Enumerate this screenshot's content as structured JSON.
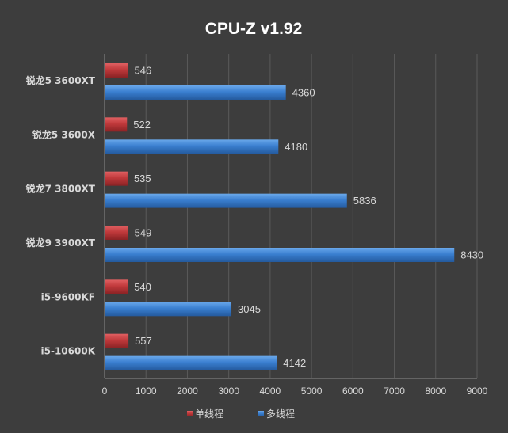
{
  "chart_data": {
    "type": "bar",
    "orientation": "horizontal",
    "title": "CPU-Z v1.92",
    "categories": [
      "锐龙5 3600XT",
      "锐龙5 3600X",
      "锐龙7 3800XT",
      "锐龙9 3900XT",
      "i5-9600KF",
      "i5-10600K"
    ],
    "series": [
      {
        "name": "单线程",
        "color": "#c0393b",
        "values": [
          546,
          522,
          535,
          549,
          540,
          557
        ]
      },
      {
        "name": "多线程",
        "color": "#3a7fd0",
        "values": [
          4360,
          4180,
          5836,
          8430,
          3045,
          4142
        ]
      }
    ],
    "xlim": [
      0,
      9000
    ],
    "xticks": [
      0,
      1000,
      2000,
      3000,
      4000,
      5000,
      6000,
      7000,
      8000,
      9000
    ],
    "xlabel": "",
    "ylabel": "",
    "grid": true,
    "legend_position": "bottom"
  },
  "colors": {
    "background": "#3d3d3d",
    "grid": "#5a5a5a",
    "text": "#d9d9d9",
    "title": "#ffffff"
  }
}
